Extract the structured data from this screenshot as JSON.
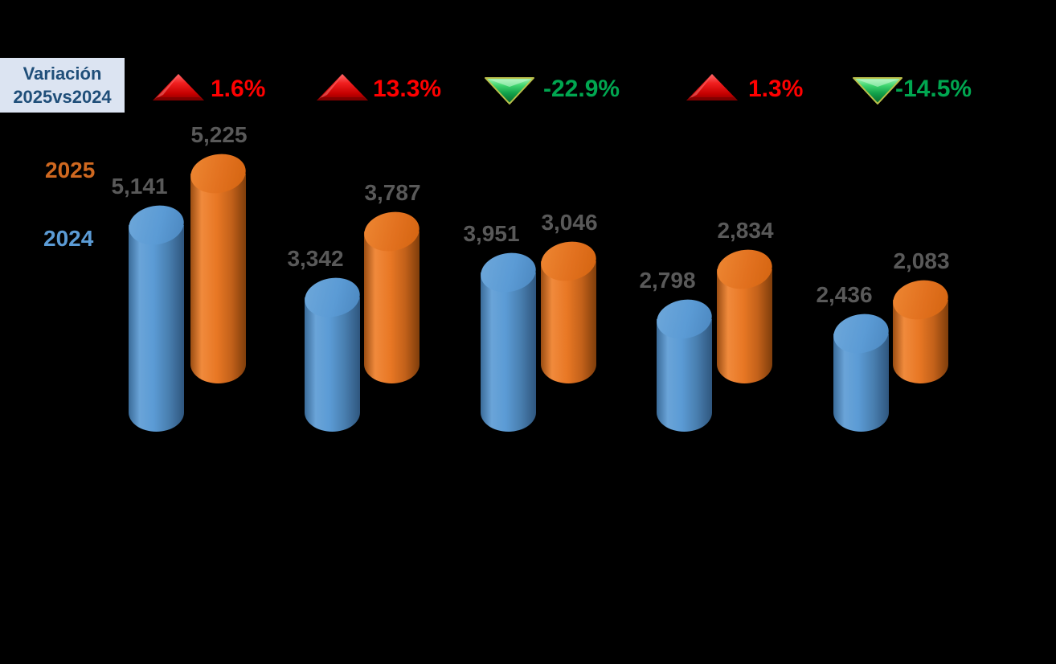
{
  "header_box": {
    "line1": "Variación",
    "line2": "2025vs2024"
  },
  "legend": {
    "items": [
      {
        "label": "2025",
        "color": "#cf6820"
      },
      {
        "label": "2024",
        "color": "#5b9bd5"
      }
    ]
  },
  "colors": {
    "background": "#000000",
    "series_2024_bar": "#5b9bd5",
    "series_2025_bar": "#e87724",
    "value_label": "#595959",
    "increase_text": "#ff0000",
    "decrease_text": "#00a650",
    "header_box_bg": "#dce4f2",
    "header_box_text": "#1f4e79"
  },
  "chart_data": {
    "type": "bar",
    "subtype": "3d-cylinder-column",
    "orientation": "vertical",
    "title": "",
    "xlabel": "",
    "ylabel": "",
    "gridlines": false,
    "axes_visible": false,
    "value_axis_min": 0,
    "legend_position": "left",
    "categories": [
      "",
      "",
      "",
      "",
      ""
    ],
    "series": [
      {
        "name": "2024",
        "color": "#5b9bd5",
        "values": [
          5141,
          3342,
          3951,
          2798,
          2436
        ],
        "labels": [
          "5,141",
          "3,342",
          "3,951",
          "2,798",
          "2,436"
        ]
      },
      {
        "name": "2025",
        "color": "#e87724",
        "values": [
          5225,
          3787,
          3046,
          2834,
          2083
        ],
        "labels": [
          "5,225",
          "3,787",
          "3,046",
          "2,834",
          "2,083"
        ]
      }
    ],
    "variations": {
      "title": "Variación 2025vs2024",
      "items": [
        {
          "label": "1.6%",
          "value": 1.6,
          "direction": "up"
        },
        {
          "label": "13.3%",
          "value": 13.3,
          "direction": "up"
        },
        {
          "label": "-22.9%",
          "value": -22.9,
          "direction": "down"
        },
        {
          "label": "1.3%",
          "value": 1.3,
          "direction": "up"
        },
        {
          "label": "-14.5%",
          "value": -14.5,
          "direction": "down"
        }
      ]
    }
  }
}
